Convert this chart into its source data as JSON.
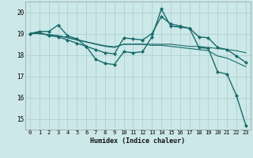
{
  "bg_color": "#cce8e8",
  "grid_color": "#aacccc",
  "line_color": "#1a6b6b",
  "xlim": [
    -0.5,
    23.5
  ],
  "ylim": [
    14.5,
    20.5
  ],
  "xticks": [
    0,
    1,
    2,
    3,
    4,
    5,
    6,
    7,
    8,
    9,
    10,
    11,
    12,
    13,
    14,
    15,
    16,
    17,
    18,
    19,
    20,
    21,
    22,
    23
  ],
  "yticks": [
    15,
    16,
    17,
    18,
    19,
    20
  ],
  "xlabel": "Humidex (Indice chaleur)",
  "series": [
    {
      "y": [
        19.0,
        19.1,
        19.1,
        19.4,
        18.9,
        18.75,
        18.4,
        17.8,
        17.6,
        17.55,
        18.15,
        18.1,
        18.15,
        18.85,
        20.15,
        19.35,
        19.3,
        19.25,
        18.35,
        18.3,
        17.2,
        17.1,
        16.1,
        14.7
      ],
      "marker": true,
      "lw": 1.0
    },
    {
      "y": [
        19.0,
        19.05,
        18.9,
        18.85,
        18.7,
        18.55,
        18.4,
        18.25,
        18.1,
        18.05,
        18.8,
        18.75,
        18.7,
        19.0,
        19.8,
        19.45,
        19.35,
        19.25,
        18.85,
        18.8,
        18.35,
        18.25,
        17.95,
        17.65
      ],
      "marker": true,
      "lw": 1.0
    },
    {
      "y": [
        19.0,
        19.0,
        18.95,
        18.9,
        18.8,
        18.7,
        18.6,
        18.5,
        18.4,
        18.35,
        18.5,
        18.5,
        18.5,
        18.5,
        18.5,
        18.5,
        18.45,
        18.4,
        18.4,
        18.35,
        18.3,
        18.25,
        18.2,
        18.1
      ],
      "marker": false,
      "lw": 0.8
    },
    {
      "y": [
        19.0,
        19.0,
        18.95,
        18.9,
        18.82,
        18.72,
        18.62,
        18.52,
        18.43,
        18.38,
        18.5,
        18.5,
        18.5,
        18.45,
        18.45,
        18.4,
        18.35,
        18.3,
        18.25,
        18.2,
        17.95,
        17.85,
        17.65,
        17.45
      ],
      "marker": false,
      "lw": 0.8
    }
  ]
}
